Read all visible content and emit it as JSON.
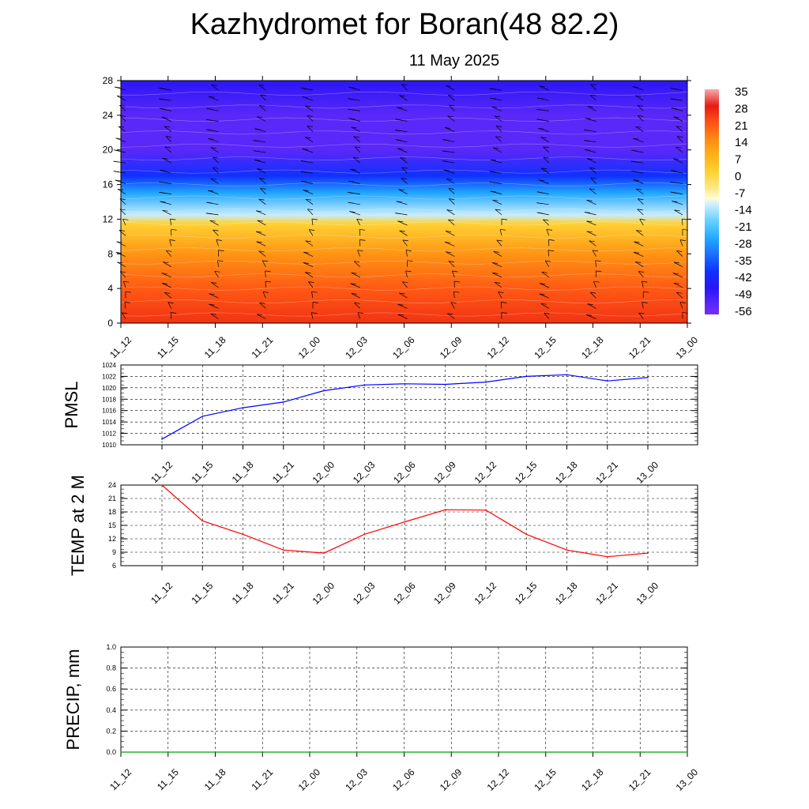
{
  "page": {
    "title": "Kazhydromet for Boran(48 82.2)",
    "subtitle": "11 May 2025"
  },
  "time_labels": [
    "11_12",
    "11_15",
    "11_18",
    "11_21",
    "12_00",
    "12_03",
    "12_06",
    "12_09",
    "12_12",
    "12_15",
    "12_18",
    "12_21",
    "13_00"
  ],
  "colors": {
    "pmsl_line": "#0000ff",
    "temp_line": "#ff0000",
    "precip_line": "#00a000",
    "grid": "#000000"
  },
  "chart_data": [
    {
      "type": "heatmap",
      "title": "",
      "xlabel": "",
      "ylabel": "",
      "x": [
        "11_12",
        "11_15",
        "11_18",
        "11_21",
        "12_00",
        "12_03",
        "12_06",
        "12_09",
        "12_12",
        "12_15",
        "12_18",
        "12_21",
        "13_00"
      ],
      "y_ticks": [
        0,
        4,
        8,
        12,
        16,
        20,
        24,
        28
      ],
      "ylim": [
        0,
        28
      ],
      "temperature_profile_by_level": [
        {
          "level": 0,
          "value": 25
        },
        {
          "level": 4,
          "value": 20
        },
        {
          "level": 8,
          "value": 12
        },
        {
          "level": 11.5,
          "value": 0
        },
        {
          "level": 12.5,
          "value": -14
        },
        {
          "level": 15,
          "value": -28
        },
        {
          "level": 17,
          "value": -42
        },
        {
          "level": 20,
          "value": -56
        },
        {
          "level": 24,
          "value": -56
        },
        {
          "level": 28,
          "value": -49
        }
      ],
      "colorbar": {
        "labels": [
          "35",
          "28",
          "21",
          "14",
          "7",
          "0",
          "-7",
          "-14",
          "-21",
          "-28",
          "-35",
          "-42",
          "-49",
          "-56"
        ]
      },
      "overlay": "wind barbs"
    },
    {
      "type": "line",
      "ylabel": "PMSL",
      "x": [
        "11_12",
        "11_15",
        "11_18",
        "11_21",
        "12_00",
        "12_03",
        "12_06",
        "12_09",
        "12_12",
        "12_15",
        "12_18",
        "12_21",
        "13_00"
      ],
      "y_ticks": [
        1010,
        1012,
        1014,
        1016,
        1018,
        1020,
        1022,
        1024
      ],
      "ylim": [
        1010,
        1024
      ],
      "grid": true,
      "series": [
        {
          "values": [
            1011.0,
            1015.0,
            1016.5,
            1017.5,
            1019.5,
            1020.5,
            1020.7,
            1020.6,
            1021.0,
            1022.0,
            1022.3,
            1021.2,
            1021.8
          ]
        }
      ]
    },
    {
      "type": "line",
      "ylabel": "TEMP at 2 M",
      "x": [
        "11_12",
        "11_15",
        "11_18",
        "11_21",
        "12_00",
        "12_03",
        "12_06",
        "12_09",
        "12_12",
        "12_15",
        "12_18",
        "12_21",
        "13_00"
      ],
      "y_ticks": [
        6,
        9,
        12,
        15,
        18,
        21,
        24
      ],
      "ylim": [
        6,
        24
      ],
      "grid": true,
      "series": [
        {
          "values": [
            24.0,
            16.0,
            13.0,
            9.5,
            8.8,
            13.0,
            15.8,
            18.5,
            18.4,
            13.0,
            9.5,
            8.0,
            8.8
          ]
        }
      ]
    },
    {
      "type": "line",
      "ylabel": "PRECIP, mm",
      "x": [
        "11_12",
        "11_15",
        "11_18",
        "11_21",
        "12_00",
        "12_03",
        "12_06",
        "12_09",
        "12_12",
        "12_15",
        "12_18",
        "12_21",
        "13_00"
      ],
      "y_ticks": [
        "0.0",
        "0.2",
        "0.4",
        "0.6",
        "0.8",
        "1.0"
      ],
      "ylim": [
        0,
        1
      ],
      "grid": true,
      "series": [
        {
          "values": [
            0,
            0,
            0,
            0,
            0,
            0,
            0,
            0,
            0,
            0,
            0,
            0,
            0
          ]
        }
      ]
    }
  ]
}
